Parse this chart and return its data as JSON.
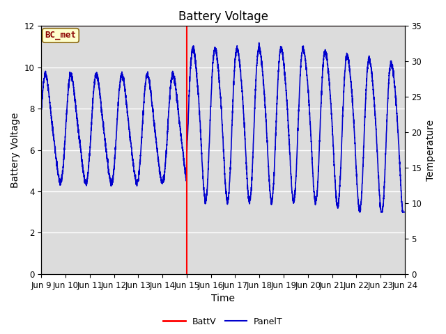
{
  "title": "Battery Voltage",
  "xlabel": "Time",
  "ylabel_left": "Battery Voltage",
  "ylabel_right": "Temperature",
  "ylim_left": [
    0,
    12
  ],
  "ylim_right": [
    0,
    35
  ],
  "xlim": [
    0,
    15
  ],
  "x_tick_labels": [
    "Jun 9",
    "Jun 10",
    "Jun 11",
    "Jun 12",
    "Jun 13",
    "Jun 14",
    "Jun 15",
    "Jun 16",
    "Jun 17",
    "Jun 18",
    "Jun 19",
    "Jun 20",
    "Jun 21",
    "Jun 22",
    "Jun 23",
    "Jun 24"
  ],
  "annotation_label": "BC_met",
  "battv_line_color": "#FF0000",
  "battv_vline_x": 6,
  "panel_t_color": "#0000CD",
  "bg_color": "#DCDCDC",
  "legend_battv": "BattV",
  "legend_panelt": "PanelT",
  "title_fontsize": 12,
  "axis_label_fontsize": 10,
  "tick_fontsize": 8.5,
  "grid_color": "#FFFFFF",
  "fig_bg": "#FFFFFF"
}
